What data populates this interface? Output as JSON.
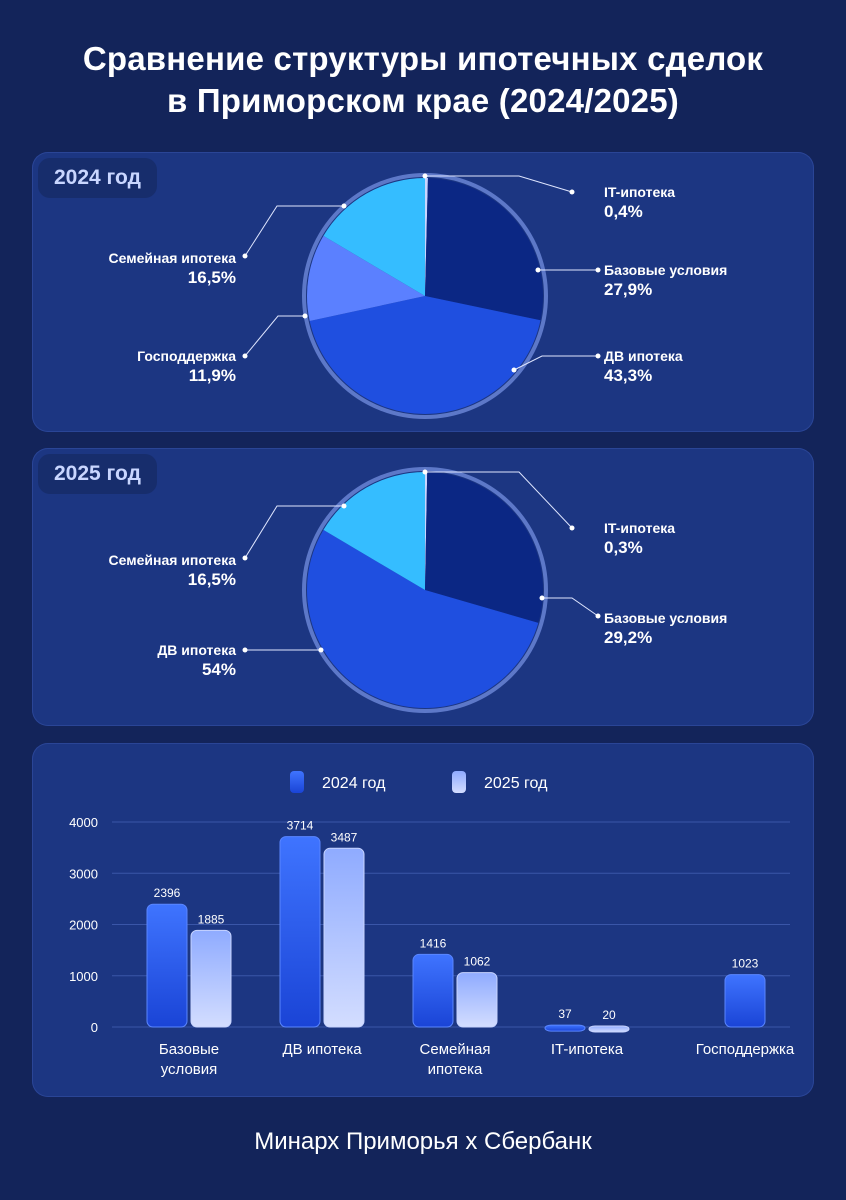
{
  "title_line1": "Сравнение структуры ипотечных сделок",
  "title_line2": "в Приморском крае (2024/2025)",
  "footer": "Минарх Приморья х Сбербанк",
  "colors": {
    "it": "#c9d5ff",
    "base": "#0b2784",
    "dv": "#1f4fe0",
    "gos": "#5b80ff",
    "sem": "#35bdff"
  },
  "chart_data": [
    {
      "type": "pie",
      "title": "2024 год",
      "slices": [
        {
          "label": "IT-ипотека",
          "value": 0.4,
          "pct": "0,4%",
          "key": "it"
        },
        {
          "label": "Базовые условия",
          "value": 27.9,
          "pct": "27,9%",
          "key": "base"
        },
        {
          "label": "ДВ ипотека",
          "value": 43.3,
          "pct": "43,3%",
          "key": "dv"
        },
        {
          "label": "Господдержка",
          "value": 11.9,
          "pct": "11,9%",
          "key": "gos"
        },
        {
          "label": "Семейная ипотека",
          "value": 16.5,
          "pct": "16,5%",
          "key": "sem"
        }
      ]
    },
    {
      "type": "pie",
      "title": "2025 год",
      "slices": [
        {
          "label": "IT-ипотека",
          "value": 0.3,
          "pct": "0,3%",
          "key": "it"
        },
        {
          "label": "Базовые условия",
          "value": 29.2,
          "pct": "29,2%",
          "key": "base"
        },
        {
          "label": "ДВ ипотека",
          "value": 54,
          "pct": "54%",
          "key": "dv"
        },
        {
          "label": "Семейная ипотека",
          "value": 16.5,
          "pct": "16,5%",
          "key": "sem"
        }
      ]
    },
    {
      "type": "bar",
      "categories": [
        "Базовые условия",
        "ДВ ипотека",
        "Семейная ипотека",
        "IT-ипотека",
        "Господдержка"
      ],
      "series": [
        {
          "name": "2024 год",
          "values": [
            2396,
            3714,
            1416,
            37,
            1023
          ]
        },
        {
          "name": "2025 год",
          "values": [
            1885,
            3487,
            1062,
            20,
            null
          ]
        }
      ],
      "ylim": [
        0,
        4000
      ],
      "yticks": [
        "0",
        "1000",
        "2000",
        "3000",
        "4000"
      ],
      "legend": "top"
    }
  ]
}
